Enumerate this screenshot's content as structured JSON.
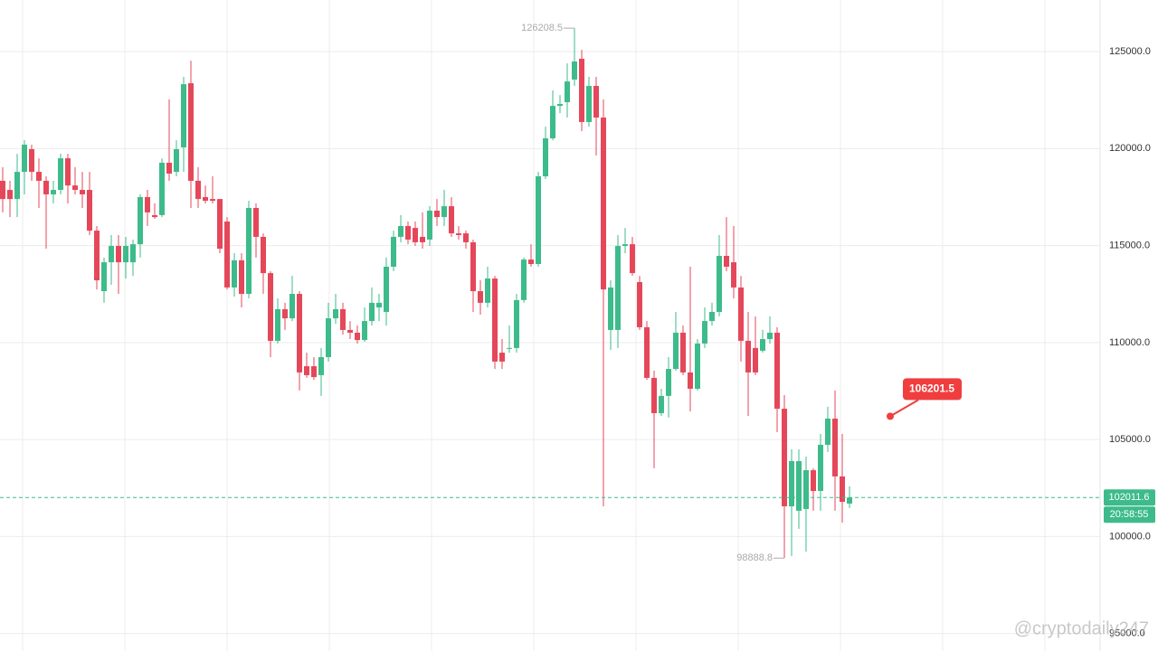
{
  "chart_data": {
    "type": "candlestick",
    "open": [
      118340,
      117870,
      117400,
      118800,
      119970,
      118800,
      118340,
      117640,
      117870,
      119500,
      118100,
      117870,
      117870,
      115770,
      112650,
      114140,
      114980,
      114140,
      114140,
      115070,
      117500,
      116570,
      116570,
      119270,
      118800,
      120060,
      123370,
      118340,
      117500,
      117400,
      117400,
      116240,
      112840,
      114240,
      112510,
      116940,
      115450,
      113580,
      110090,
      111720,
      111250,
      112510,
      108780,
      108780,
      108320,
      109250,
      111250,
      111720,
      110650,
      110510,
      110130,
      111110,
      111810,
      111580,
      113910,
      115450,
      116010,
      115910,
      115450,
      115310,
      116800,
      116470,
      117030,
      115630,
      115630,
      115170,
      112650,
      112050,
      113300,
      109480,
      109720,
      109720,
      112190,
      114280,
      114050,
      118570,
      120530,
      122200,
      122390,
      123560,
      124630,
      121370,
      123230,
      121600,
      110650,
      110650,
      114980,
      115070,
      113120,
      110790,
      108180,
      106360,
      107250,
      108640,
      110510,
      108460,
      107620,
      109950,
      111110,
      111580,
      114470,
      114140,
      112840,
      110090,
      109720,
      109580,
      110180,
      110510,
      106590,
      101560,
      101330,
      101420,
      103420,
      102350,
      104730,
      106080,
      103100,
      101700
    ],
    "high": [
      119040,
      118340,
      119730,
      120430,
      120200,
      119500,
      118570,
      118340,
      119730,
      119730,
      119040,
      118800,
      118800,
      116010,
      114380,
      115540,
      115540,
      115450,
      115310,
      117640,
      117870,
      117170,
      119500,
      122530,
      120430,
      123700,
      124530,
      119040,
      118100,
      118570,
      117400,
      116470,
      114610,
      114610,
      117310,
      117170,
      115630,
      113680,
      112280,
      112050,
      113440,
      112650,
      109480,
      109250,
      109720,
      112050,
      112510,
      112050,
      111110,
      110880,
      111810,
      112840,
      112510,
      114380,
      115770,
      116570,
      116240,
      116240,
      116710,
      117030,
      117400,
      117870,
      117500,
      116010,
      115770,
      115310,
      113210,
      113910,
      113440,
      110180,
      110880,
      112510,
      114380,
      115070,
      118800,
      121130,
      123000,
      122760,
      124390,
      126208.5,
      125090,
      123700,
      123700,
      122530,
      113210,
      115540,
      115910,
      115450,
      113440,
      111110,
      108550,
      107620,
      109250,
      111580,
      110880,
      113910,
      110180,
      111810,
      112050,
      115540,
      116470,
      116010,
      113440,
      111580,
      111350,
      110650,
      111350,
      110790,
      107290,
      104500,
      104500,
      104120,
      103520,
      105290,
      106690,
      107530,
      105290,
      102590
    ],
    "low": [
      116710,
      116470,
      116470,
      117640,
      118340,
      116940,
      114840,
      117170,
      117640,
      117170,
      117640,
      116940,
      115540,
      112740,
      112050,
      112980,
      112510,
      113300,
      113440,
      114380,
      116010,
      116380,
      116470,
      118340,
      118570,
      118800,
      116940,
      116940,
      117170,
      117170,
      114610,
      112740,
      112370,
      111810,
      112280,
      114380,
      112510,
      109250,
      109950,
      110650,
      111110,
      107530,
      108180,
      108080,
      107250,
      109020,
      110970,
      110410,
      110180,
      109950,
      110040,
      110880,
      111110,
      110880,
      113680,
      115170,
      115070,
      114980,
      114840,
      114980,
      116010,
      116010,
      115450,
      115310,
      114840,
      111580,
      111440,
      111810,
      108640,
      108640,
      109480,
      109480,
      112050,
      113910,
      113910,
      118430,
      120430,
      121830,
      121600,
      123230,
      120900,
      121130,
      119640,
      101560,
      109620,
      109720,
      114610,
      113440,
      110650,
      108080,
      103520,
      106220,
      106130,
      108550,
      108320,
      106450,
      107530,
      109720,
      110880,
      111350,
      113680,
      112280,
      109020,
      106220,
      108320,
      109480,
      109950,
      105380,
      98888.8,
      99000,
      100400,
      99230,
      101330,
      101330,
      104360,
      101330,
      100720,
      101470
    ],
    "close": [
      117400,
      117400,
      118800,
      120200,
      118800,
      118340,
      117640,
      117870,
      119500,
      118100,
      117870,
      117640,
      115770,
      113210,
      114140,
      114980,
      114140,
      114980,
      115070,
      117500,
      116710,
      116470,
      119270,
      118710,
      119970,
      123320,
      118340,
      117400,
      117310,
      117310,
      114840,
      112840,
      114240,
      112510,
      116940,
      115450,
      113580,
      110090,
      111720,
      111250,
      112510,
      108460,
      108320,
      108220,
      109250,
      111250,
      111720,
      110650,
      110510,
      110130,
      111110,
      112050,
      112050,
      113910,
      115450,
      116010,
      115310,
      115170,
      115170,
      116800,
      116470,
      117030,
      115630,
      115540,
      115170,
      112650,
      112050,
      113300,
      109020,
      109020,
      109720,
      112190,
      114280,
      114050,
      118570,
      120530,
      122200,
      122300,
      123460,
      124490,
      121370,
      123230,
      121600,
      112740,
      112840,
      114980,
      115070,
      113580,
      110790,
      108180,
      106360,
      107250,
      108640,
      110510,
      108460,
      107620,
      109950,
      111110,
      111580,
      114470,
      113910,
      112840,
      110090,
      108460,
      108460,
      110180,
      110510,
      106590,
      101560,
      103890,
      103890,
      103420,
      102350,
      104730,
      106080,
      103100,
      101790,
      102011.6
    ],
    "up_color": "#3dbb8b",
    "down_color": "#e5475a",
    "ylim": [
      94100,
      127660
    ],
    "yticks": [
      {
        "value": 95000,
        "label": "95000.0"
      },
      {
        "value": 100000,
        "label": "100000.0"
      },
      {
        "value": 105000,
        "label": "105000.0"
      },
      {
        "value": 110000,
        "label": "110000.0"
      },
      {
        "value": 115000,
        "label": "115000.0"
      },
      {
        "value": 120000,
        "label": "120000.0"
      },
      {
        "value": 125000,
        "label": "125000.0"
      }
    ],
    "grid": true,
    "countdown": "20:58:55",
    "alert": {
      "value": 106201.5,
      "color": "#f03e3e"
    },
    "watermark": "@cryptodaily247"
  }
}
